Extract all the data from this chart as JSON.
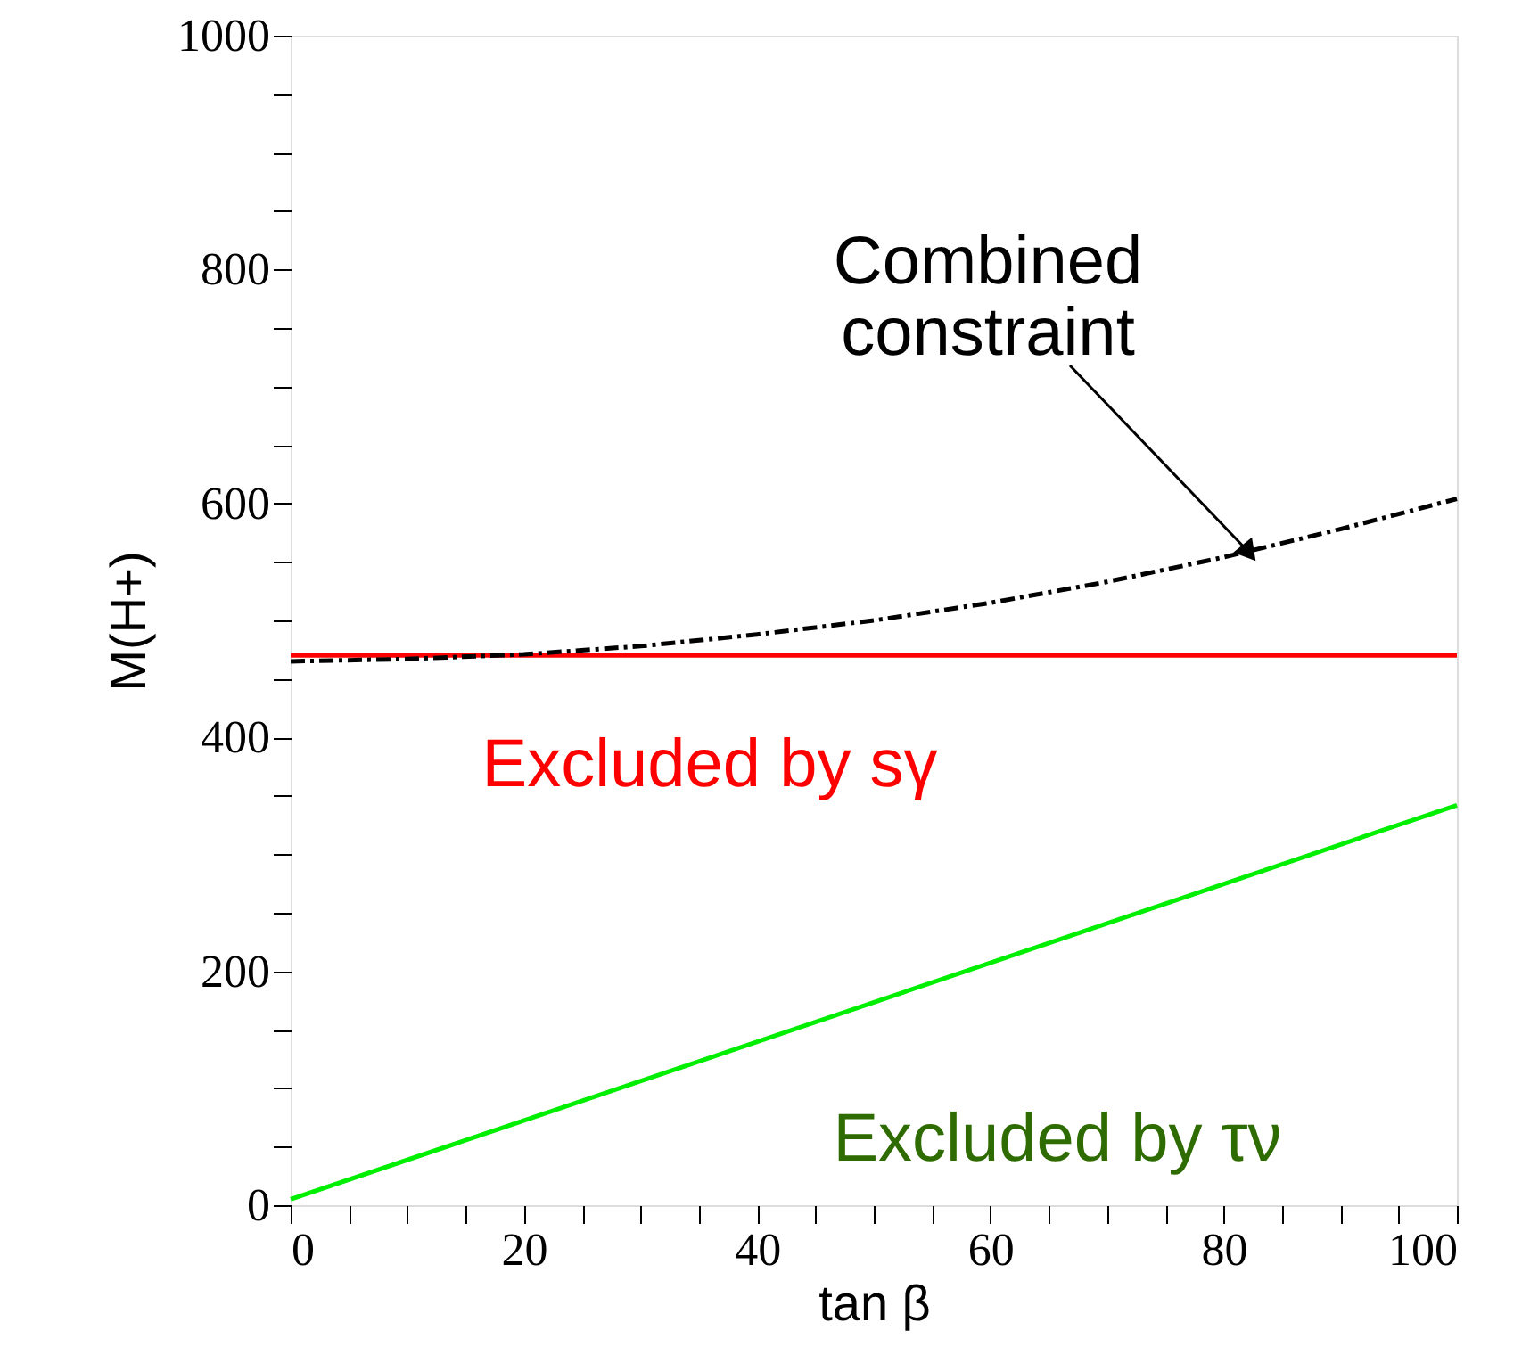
{
  "chart_data": {
    "type": "line",
    "xlabel": "tan β",
    "ylabel": "M(H+)",
    "xlim": [
      0,
      100
    ],
    "ylim": [
      0,
      1000
    ],
    "xticks": [
      0,
      {
        "value": 5,
        "label": null
      },
      {
        "value": 10,
        "label": null
      },
      {
        "value": 15,
        "label": null
      },
      20,
      {
        "value": 25,
        "label": null
      },
      {
        "value": 30,
        "label": null
      },
      {
        "value": 35,
        "label": null
      },
      40,
      {
        "value": 45,
        "label": null
      },
      {
        "value": 50,
        "label": null
      },
      {
        "value": 55,
        "label": null
      },
      60,
      {
        "value": 65,
        "label": null
      },
      {
        "value": 70,
        "label": null
      },
      {
        "value": 75,
        "label": null
      },
      80,
      {
        "value": 85,
        "label": null
      },
      {
        "value": 90,
        "label": null
      },
      {
        "value": 95,
        "label": null
      },
      100
    ],
    "yticks": [
      0,
      {
        "value": 50,
        "label": null
      },
      {
        "value": 100,
        "label": null
      },
      {
        "value": 150,
        "label": null
      },
      200,
      {
        "value": 250,
        "label": null
      },
      {
        "value": 300,
        "label": null
      },
      {
        "value": 350,
        "label": null
      },
      400,
      {
        "value": 450,
        "label": null
      },
      {
        "value": 500,
        "label": null
      },
      {
        "value": 550,
        "label": null
      },
      600,
      {
        "value": 650,
        "label": null
      },
      {
        "value": 700,
        "label": null
      },
      {
        "value": 750,
        "label": null
      },
      800,
      {
        "value": 850,
        "label": null
      },
      {
        "value": 900,
        "label": null
      },
      {
        "value": 950,
        "label": null
      },
      1000
    ],
    "grid": false,
    "series": [
      {
        "color": "#ff0000",
        "line_style": "solid",
        "x": [
          0,
          100
        ],
        "values": [
          470,
          470
        ]
      },
      {
        "color": "#00ee00",
        "line_style": "solid",
        "x": [
          0,
          100
        ],
        "values": [
          5,
          342
        ]
      },
      {
        "color": "#000000",
        "line_style": "dashed",
        "x": [
          0,
          10,
          20,
          30,
          40,
          50,
          60,
          70,
          80,
          90,
          100
        ],
        "values": [
          465,
          467,
          471,
          478,
          488,
          500,
          515,
          533,
          554,
          578,
          604
        ]
      }
    ],
    "annotations": [
      {
        "text": "Combined\nconstraint",
        "x": 82,
        "y": 560
      },
      "Excluded by sγ",
      "Excluded by τν"
    ]
  }
}
